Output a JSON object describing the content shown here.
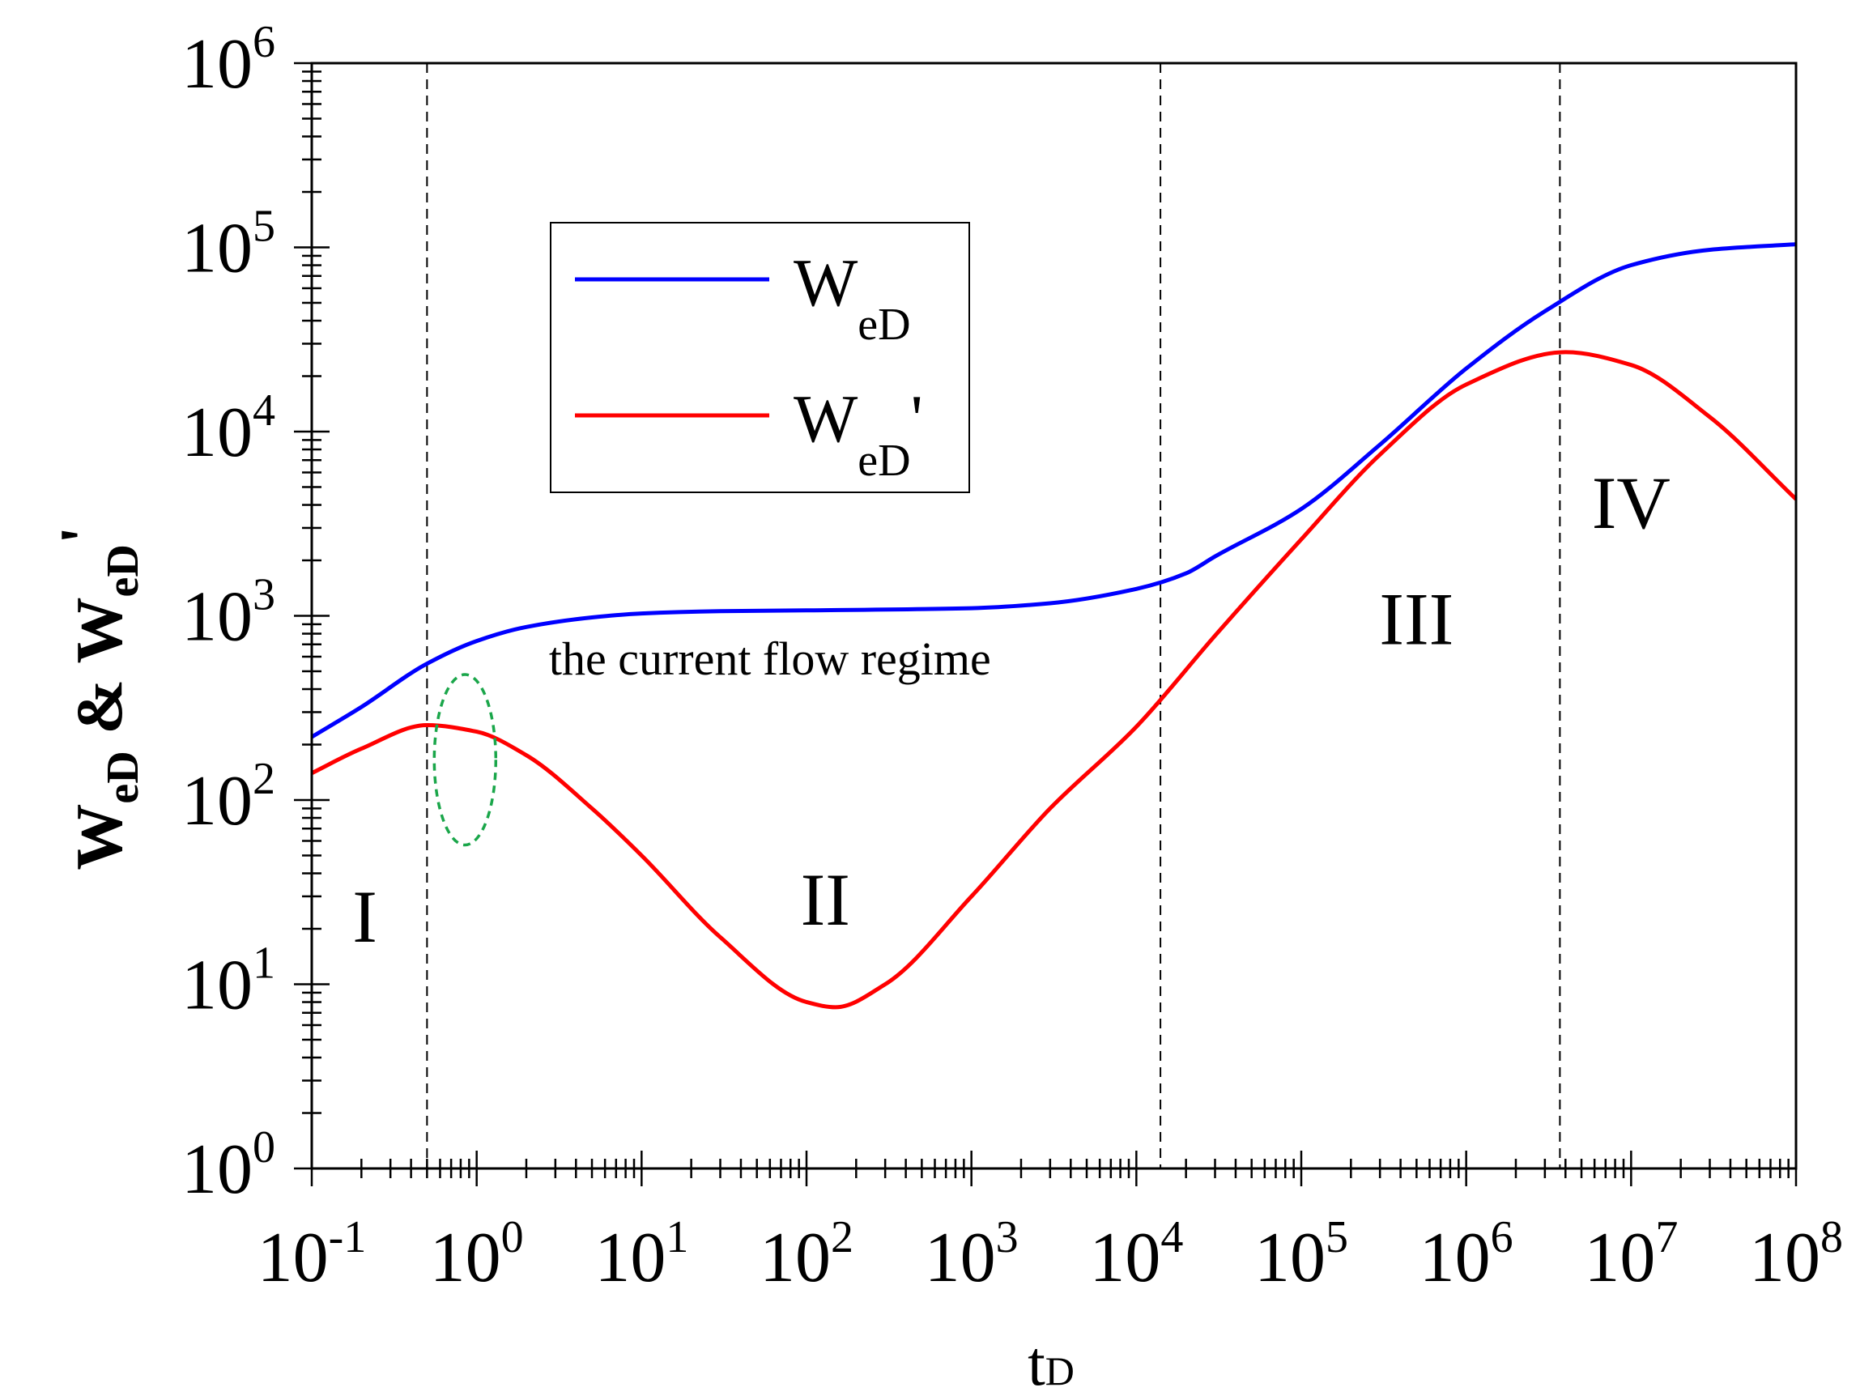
{
  "chart_data": {
    "type": "line",
    "x_scale": "log",
    "y_scale": "log",
    "xlim": [
      0.1,
      100000000
    ],
    "ylim": [
      1,
      1000000
    ],
    "x_tick_values": [
      0.1,
      1,
      10,
      100,
      1000,
      10000,
      100000,
      1000000,
      10000000,
      100000000
    ],
    "x_tick_labels": [
      {
        "base": "10",
        "exp": "-1"
      },
      {
        "base": "10",
        "exp": "0"
      },
      {
        "base": "10",
        "exp": "1"
      },
      {
        "base": "10",
        "exp": "2"
      },
      {
        "base": "10",
        "exp": "3"
      },
      {
        "base": "10",
        "exp": "4"
      },
      {
        "base": "10",
        "exp": "5"
      },
      {
        "base": "10",
        "exp": "6"
      },
      {
        "base": "10",
        "exp": "7"
      },
      {
        "base": "10",
        "exp": "8"
      }
    ],
    "y_tick_values": [
      1,
      10,
      100,
      1000,
      10000,
      100000,
      1000000
    ],
    "y_tick_labels": [
      {
        "base": "10",
        "exp": "0"
      },
      {
        "base": "10",
        "exp": "1"
      },
      {
        "base": "10",
        "exp": "2"
      },
      {
        "base": "10",
        "exp": "3"
      },
      {
        "base": "10",
        "exp": "4"
      },
      {
        "base": "10",
        "exp": "5"
      },
      {
        "base": "10",
        "exp": "6"
      }
    ],
    "xlabel": {
      "main": "t",
      "sub": "D"
    },
    "ylabel": {
      "parts": [
        "W",
        "eD",
        " & W",
        "eD",
        "'"
      ]
    },
    "series": [
      {
        "name": "WeD",
        "legend_main": "W",
        "legend_sub": "eD",
        "legend_suffix": "",
        "color": "#0000ff",
        "x": [
          0.1,
          0.2,
          0.5,
          1,
          2,
          5,
          10,
          30,
          100,
          1000,
          3000,
          10000,
          20000,
          30000,
          100000,
          300000,
          1000000,
          3000000,
          10000000,
          30000000,
          100000000
        ],
        "y": [
          220,
          320,
          550,
          730,
          870,
          980,
          1030,
          1060,
          1070,
          1100,
          1170,
          1400,
          1700,
          2100,
          3800,
          8500,
          22000,
          45000,
          80000,
          97000,
          104000
        ]
      },
      {
        "name": "WeD'",
        "legend_main": "W",
        "legend_sub": "eD",
        "legend_suffix": "'",
        "color": "#ff0000",
        "x": [
          0.1,
          0.2,
          0.5,
          1,
          2,
          5,
          10,
          30,
          100,
          150,
          300,
          1000,
          3000,
          10000,
          30000,
          100000,
          300000,
          1000000,
          4000000,
          10000000,
          30000000,
          100000000
        ],
        "y": [
          140,
          190,
          255,
          235,
          175,
          90,
          50,
          18,
          8,
          7.5,
          10,
          30,
          90,
          250,
          780,
          2600,
          7500,
          18000,
          27000,
          23000,
          12000,
          4300
        ]
      }
    ],
    "vlines_x": [
      0.5,
      14000,
      3700000
    ],
    "regions": [
      {
        "label": "I",
        "x": 0.21,
        "y": 17
      },
      {
        "label": "II",
        "x": 130,
        "y": 21
      },
      {
        "label": "III",
        "x": 500000,
        "y": 700
      },
      {
        "label": "IV",
        "x": 10000000,
        "y": 3000
      }
    ],
    "annotation": {
      "text": "the current flow regime",
      "x": 60,
      "y": 480
    },
    "marker_ellipse": {
      "x": 0.85,
      "y_low": 57,
      "y_high": 480,
      "color": "#1aa64a"
    },
    "legend": {
      "position": "upper-left"
    }
  }
}
